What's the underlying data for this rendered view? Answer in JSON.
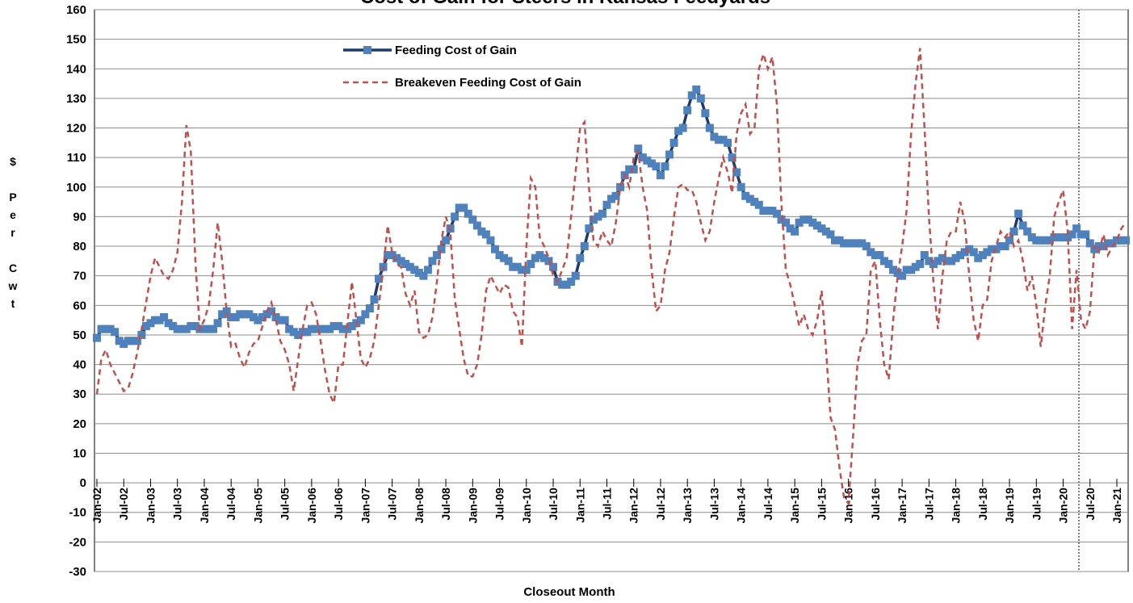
{
  "chart_data": {
    "type": "line",
    "title": "Cost of Gain for Steers in Kansas Feedyards",
    "x_label": "Closeout Month",
    "y_label": "$ Per Cwt",
    "ylim": [
      -30,
      160
    ],
    "yticks": [
      -30,
      -20,
      -10,
      0,
      10,
      20,
      30,
      40,
      50,
      60,
      70,
      80,
      90,
      100,
      110,
      120,
      130,
      140,
      150,
      160
    ],
    "grid": true,
    "legend": "upper center",
    "categories": [
      "Jan-02",
      null,
      null,
      null,
      null,
      null,
      "Jul-02",
      null,
      null,
      null,
      null,
      null,
      "Jan-03",
      null,
      null,
      null,
      null,
      null,
      "Jul-03",
      null,
      null,
      null,
      null,
      null,
      "Jan-04",
      null,
      null,
      null,
      null,
      null,
      "Jul-04",
      null,
      null,
      null,
      null,
      null,
      "Jan-05",
      null,
      null,
      null,
      null,
      null,
      "Jul-05",
      null,
      null,
      null,
      null,
      null,
      "Jan-06",
      null,
      null,
      null,
      null,
      null,
      "Jul-06",
      null,
      null,
      null,
      null,
      null,
      "Jan-07",
      null,
      null,
      null,
      null,
      null,
      "Jul-07",
      null,
      null,
      null,
      null,
      null,
      "Jan-08",
      null,
      null,
      null,
      null,
      null,
      "Jul-08",
      null,
      null,
      null,
      null,
      null,
      "Jan-09",
      null,
      null,
      null,
      null,
      null,
      "Jul-09",
      null,
      null,
      null,
      null,
      null,
      "Jan-10",
      null,
      null,
      null,
      null,
      null,
      "Jul-10",
      null,
      null,
      null,
      null,
      null,
      "Jan-11",
      null,
      null,
      null,
      null,
      null,
      "Jul-11",
      null,
      null,
      null,
      null,
      null,
      "Jan-12",
      null,
      null,
      null,
      null,
      null,
      "Jul-12",
      null,
      null,
      null,
      null,
      null,
      "Jan-13",
      null,
      null,
      null,
      null,
      null,
      "Jul-13",
      null,
      null,
      null,
      null,
      null,
      "Jan-14",
      null,
      null,
      null,
      null,
      null,
      "Jul-14",
      null,
      null,
      null,
      null,
      null,
      "Jan-15",
      null,
      null,
      null,
      null,
      null,
      "Jul-15",
      null,
      null,
      null,
      null,
      null,
      "Jan-16",
      null,
      null,
      null,
      null,
      null,
      "Jul-16",
      null,
      null,
      null,
      null,
      null,
      "Jan-17",
      null,
      null,
      null,
      null,
      null,
      "Jul-17",
      null,
      null,
      null,
      null,
      null,
      "Jan-18",
      null,
      null,
      null,
      null,
      null,
      "Jul-18",
      null,
      null,
      null,
      null,
      null,
      "Jan-19",
      null,
      null,
      null,
      null,
      null,
      "Jul-19",
      null,
      null,
      null,
      null,
      null,
      "Jan-20",
      null,
      null,
      null,
      null,
      null,
      "Jul-20",
      null,
      null,
      null,
      null,
      null,
      "Jan-21",
      null,
      null
    ],
    "series": [
      {
        "name": "Feeding Cost of Gain",
        "color": "#4f81bd",
        "line_color": "#1f3a6e",
        "style": "solid",
        "markers": true,
        "values": [
          49,
          52,
          52,
          52,
          51,
          48,
          47,
          48,
          48,
          48,
          50,
          53,
          54,
          55,
          55,
          56,
          54,
          53,
          52,
          52,
          52,
          53,
          53,
          52,
          52,
          52,
          52,
          54,
          57,
          58,
          56,
          56,
          57,
          57,
          57,
          56,
          55,
          56,
          57,
          58,
          56,
          55,
          55,
          52,
          51,
          50,
          51,
          51,
          52,
          52,
          52,
          52,
          52,
          53,
          53,
          52,
          52,
          53,
          54,
          55,
          57,
          59,
          62,
          69,
          73,
          77,
          77,
          76,
          75,
          74,
          73,
          72,
          71,
          70,
          72,
          75,
          77,
          79,
          82,
          86,
          90,
          93,
          93,
          91,
          89,
          87,
          85,
          84,
          82,
          79,
          77,
          76,
          75,
          73,
          73,
          72,
          72,
          74,
          76,
          77,
          76,
          75,
          73,
          68,
          67,
          67,
          68,
          70,
          76,
          80,
          86,
          89,
          90,
          91,
          94,
          96,
          97,
          100,
          104,
          106,
          106,
          113,
          110,
          109,
          108,
          107,
          104,
          107,
          111,
          115,
          119,
          120,
          126,
          131,
          133,
          130,
          125,
          120,
          117,
          116,
          116,
          115,
          110,
          105,
          100,
          97,
          96,
          95,
          94,
          92,
          92,
          92,
          91,
          89,
          88,
          86,
          85,
          88,
          89,
          89,
          88,
          87,
          86,
          85,
          84,
          82,
          82,
          81,
          81,
          81,
          81,
          81,
          80,
          78,
          77,
          77,
          75,
          74,
          72,
          71,
          70,
          72,
          72,
          73,
          74,
          77,
          75,
          74,
          75,
          76,
          75,
          75,
          76,
          77,
          78,
          79,
          78,
          76,
          77,
          78,
          79,
          79,
          80,
          80,
          82,
          85,
          91,
          87,
          85,
          83,
          82,
          82,
          82,
          82,
          83,
          83,
          83,
          83,
          84,
          86,
          84,
          84,
          81,
          79,
          80,
          80,
          81,
          81,
          82,
          82,
          82
        ]
      },
      {
        "name": "Breakeven Feeding Cost of Gain",
        "color": "#c0504d",
        "style": "dashed",
        "markers": false,
        "values": [
          30,
          42,
          45,
          40,
          37,
          34,
          31,
          32,
          37,
          44,
          52,
          61,
          70,
          76,
          73,
          70,
          69,
          72,
          78,
          95,
          121,
          112,
          75,
          52,
          55,
          60,
          72,
          88,
          75,
          58,
          46,
          47,
          42,
          39,
          44,
          47,
          48,
          53,
          58,
          61,
          55,
          48,
          45,
          40,
          31,
          42,
          52,
          60,
          61,
          57,
          48,
          38,
          30,
          27,
          40,
          40,
          54,
          68,
          55,
          42,
          39,
          42,
          48,
          60,
          72,
          87,
          78,
          74,
          73,
          64,
          60,
          65,
          51,
          49,
          50,
          56,
          68,
          82,
          90,
          85,
          62,
          52,
          42,
          36,
          36,
          40,
          50,
          65,
          70,
          67,
          64,
          67,
          66,
          58,
          56,
          46,
          80,
          103,
          100,
          83,
          80,
          76,
          70,
          68,
          72,
          76,
          90,
          105,
          120,
          122,
          100,
          82,
          80,
          85,
          82,
          80,
          88,
          100,
          104,
          100,
          110,
          112,
          100,
          92,
          72,
          58,
          60,
          72,
          78,
          90,
          100,
          101,
          99,
          99,
          95,
          88,
          82,
          85,
          95,
          103,
          110,
          105,
          98,
          118,
          125,
          128,
          118,
          120,
          140,
          145,
          140,
          144,
          128,
          95,
          72,
          67,
          60,
          53,
          57,
          52,
          50,
          55,
          65,
          45,
          22,
          18,
          5,
          -5,
          -7,
          15,
          40,
          48,
          50,
          72,
          75,
          55,
          40,
          35,
          55,
          70,
          80,
          92,
          118,
          135,
          147,
          120,
          90,
          68,
          52,
          70,
          82,
          85,
          85,
          95,
          88,
          70,
          55,
          48,
          60,
          62,
          75,
          80,
          85,
          83,
          85,
          80,
          82,
          75,
          65,
          70,
          60,
          46,
          60,
          70,
          90,
          95,
          99,
          85,
          52,
          72,
          55,
          52,
          58,
          80,
          78,
          84,
          77,
          80,
          82,
          86,
          88
        ]
      }
    ]
  }
}
